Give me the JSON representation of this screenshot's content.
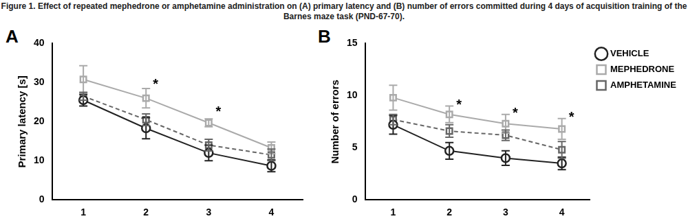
{
  "title": "Figure 1. Effect of repeated mephedrone or amphetamine administration on (A) primary latency and (B) number of errors committed during 4 days of acquisition training of the Barnes maze task (PND-67-70).",
  "chart_data": [
    {
      "type": "line",
      "panel": "A",
      "y_label": "Primary latency [s]",
      "categories": [
        "1",
        "2",
        "3",
        "4"
      ],
      "ylim": [
        0,
        40
      ],
      "yticks": [
        0,
        10,
        20,
        30,
        40
      ],
      "grid": false,
      "series": [
        {
          "name": "VEHICLE",
          "color": "#222222",
          "marker": "circle",
          "line_style": "solid",
          "values": [
            25.5,
            18.3,
            12.0,
            8.7
          ],
          "errors": [
            1.5,
            2.7,
            2.0,
            1.5
          ]
        },
        {
          "name": "MEPHEDRONE",
          "color": "#aaaaaa",
          "marker": "square",
          "line_style": "solid",
          "values": [
            30.8,
            26.0,
            19.7,
            13.3
          ],
          "errors": [
            3.5,
            2.5,
            1.0,
            1.5
          ]
        },
        {
          "name": "AMPHETAMINE",
          "color": "#666666",
          "marker": "square",
          "line_style": "dashed",
          "values": [
            26.5,
            20.5,
            14.0,
            11.5
          ],
          "errors": [
            1.0,
            1.5,
            1.5,
            1.5
          ]
        }
      ],
      "annotations": [
        {
          "text": "*",
          "x": "2",
          "y": 29.5
        },
        {
          "text": "*",
          "x": "3",
          "y": 22.5
        }
      ]
    },
    {
      "type": "line",
      "panel": "B",
      "y_label": "Number of errors",
      "categories": [
        "1",
        "2",
        "3",
        "4"
      ],
      "ylim": [
        0,
        15
      ],
      "yticks": [
        0,
        5,
        10,
        15
      ],
      "grid": false,
      "legend": "right",
      "series": [
        {
          "name": "VEHICLE",
          "color": "#222222",
          "marker": "circle",
          "line_style": "solid",
          "values": [
            7.2,
            4.7,
            4.0,
            3.5
          ],
          "errors": [
            0.9,
            0.8,
            0.7,
            0.6
          ]
        },
        {
          "name": "MEPHEDRONE",
          "color": "#aaaaaa",
          "marker": "square",
          "line_style": "solid",
          "values": [
            9.8,
            8.2,
            7.3,
            6.8
          ],
          "errors": [
            1.2,
            0.8,
            0.9,
            1.0
          ]
        },
        {
          "name": "AMPHETAMINE",
          "color": "#666666",
          "marker": "square",
          "line_style": "dashed",
          "values": [
            7.7,
            6.6,
            6.2,
            4.8
          ],
          "errors": [
            0.5,
            0.6,
            0.5,
            0.8
          ]
        }
      ],
      "annotations": [
        {
          "text": "*",
          "x": "2",
          "y": 9.1
        },
        {
          "text": "*",
          "x": "3",
          "y": 8.3
        },
        {
          "text": "*",
          "x": "4",
          "y": 7.9
        }
      ]
    }
  ]
}
